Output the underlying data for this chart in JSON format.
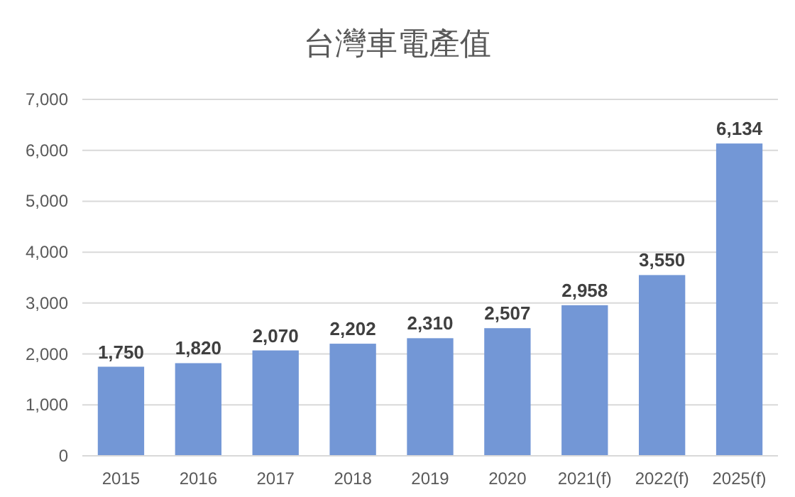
{
  "chart_data": {
    "type": "bar",
    "title": "台灣車電產值",
    "categories": [
      "2015",
      "2016",
      "2017",
      "2018",
      "2019",
      "2020",
      "2021(f)",
      "2022(f)",
      "2025(f)"
    ],
    "values": [
      1750,
      1820,
      2070,
      2202,
      2310,
      2507,
      2958,
      3550,
      6134
    ],
    "value_labels": [
      "1,750",
      "1,820",
      "2,070",
      "2,202",
      "2,310",
      "2,507",
      "2,958",
      "3,550",
      "6,134"
    ],
    "color": "#7397d6",
    "ylim": [
      0,
      7000
    ],
    "yticks": [
      0,
      {
        "value": 1000,
        "label": "1,000"
      },
      {
        "value": 2000,
        "label": "2,000"
      },
      {
        "value": 3000,
        "label": "3,000"
      },
      {
        "value": 4000,
        "label": "4,000"
      },
      {
        "value": 5000,
        "label": "5,000"
      },
      {
        "value": 6000,
        "label": "6,000"
      },
      {
        "value": 7000,
        "label": "7,000"
      }
    ],
    "grid": "y"
  }
}
